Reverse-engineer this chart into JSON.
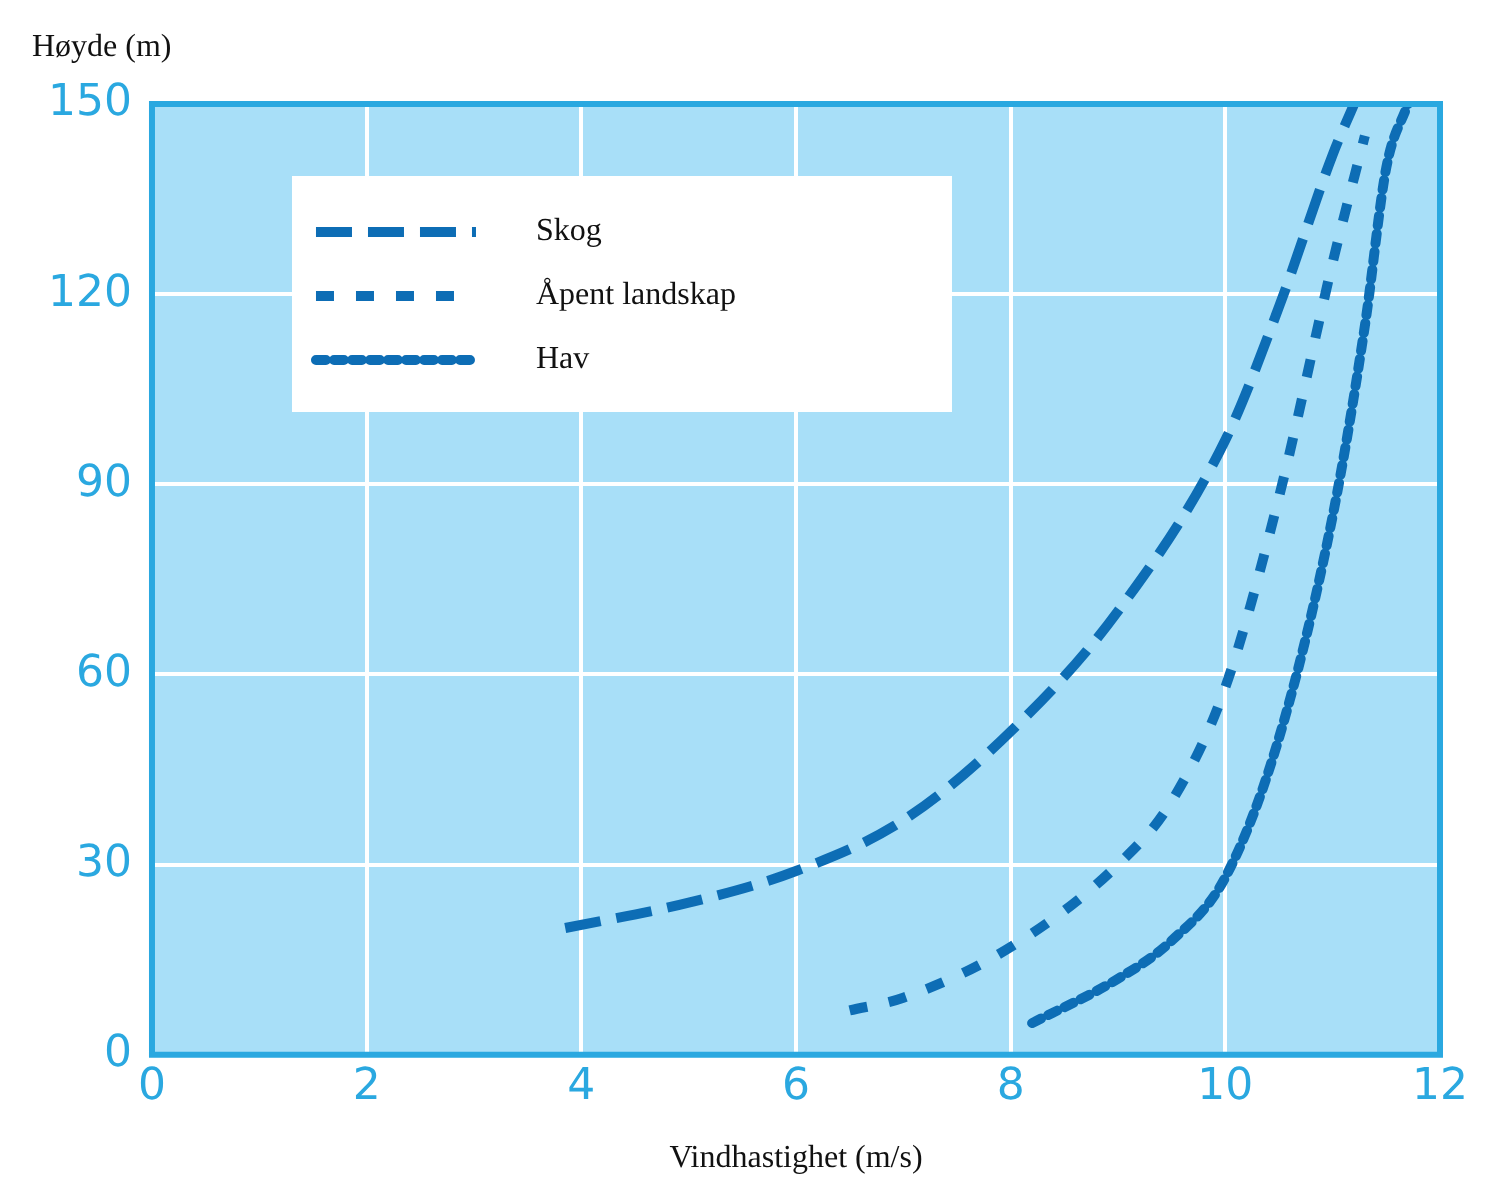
{
  "chart_data": {
    "type": "line",
    "xlabel": "Vindhastighet (m/s)",
    "ylabel": "Høyde (m)",
    "xlim": [
      0,
      12
    ],
    "ylim": [
      0,
      150
    ],
    "xticks": [
      0,
      2,
      4,
      6,
      8,
      10,
      12
    ],
    "yticks": [
      0,
      30,
      60,
      90,
      120,
      150
    ],
    "grid": true,
    "legend": "top left",
    "marker": "none",
    "series": [
      {
        "name": "Skog",
        "color": "#0d6db5",
        "line_style": "dashed",
        "x": [
          3.85,
          5,
          6,
          7,
          8,
          9,
          10,
          10.5,
          11,
          11.2
        ],
        "values": [
          20,
          24,
          29,
          37,
          51,
          70,
          97,
          118,
          142,
          150
        ]
      },
      {
        "name": "Åpent landskap",
        "color": "#0d6db5",
        "line_style": "dashed",
        "x": [
          6.5,
          7,
          8,
          9,
          9.5,
          10,
          10.5,
          11,
          11.3
        ],
        "values": [
          7,
          9,
          17,
          30,
          40,
          58,
          88,
          125,
          145
        ]
      },
      {
        "name": "Hav",
        "color": "#0d6db5",
        "line_style": "dotted",
        "x": [
          8.2,
          9,
          9.5,
          10,
          10.5,
          11,
          11.3,
          11.5,
          11.7
        ],
        "values": [
          5,
          12,
          18,
          28,
          50,
          85,
          115,
          140,
          150
        ]
      }
    ]
  }
}
